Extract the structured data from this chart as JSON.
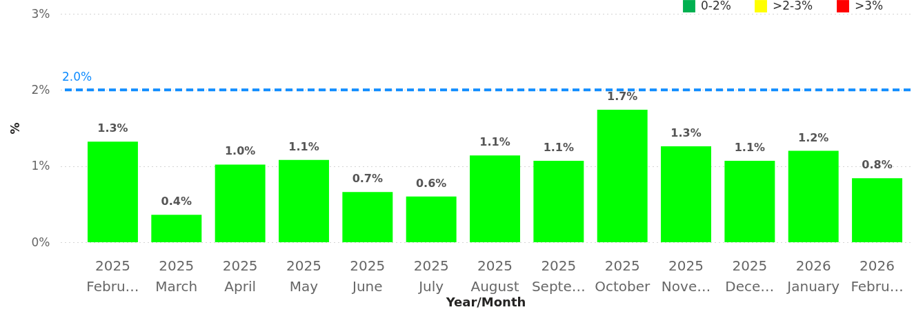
{
  "chart_data": {
    "type": "bar",
    "xlabel": "Year/Month",
    "ylabel": "%",
    "categories": [
      "2025\nFebru…",
      "2025\nMarch",
      "2025\nApril",
      "2025\nMay",
      "2025\nJune",
      "2025\nJuly",
      "2025\nAugust",
      "2025\nSepte…",
      "2025\nOctober",
      "2025\nNove…",
      "2025\nDece…",
      "2026\nJanuary",
      "2026\nFebru…"
    ],
    "series": [
      {
        "color": "#00ff00",
        "values": [
          1.32,
          0.36,
          1.02,
          1.08,
          0.66,
          0.6,
          1.14,
          1.07,
          1.74,
          1.26,
          1.07,
          1.2,
          0.84
        ],
        "value_labels": [
          "1.3%",
          "0.4%",
          "1.0%",
          "1.1%",
          "0.7%",
          "0.6%",
          "1.1%",
          "1.1%",
          "1.7%",
          "1.3%",
          "1.1%",
          "1.2%",
          "0.8%"
        ]
      },
      {
        "name": "0-2%",
        "color": "#00b050",
        "values": [
          null,
          null,
          null,
          null,
          null,
          null,
          null,
          null,
          null,
          null,
          null,
          null,
          null
        ]
      },
      {
        "name": ">2-3%",
        "color": "#ffff00",
        "values": [
          null,
          null,
          null,
          null,
          null,
          null,
          null,
          null,
          null,
          null,
          null,
          null,
          null
        ]
      },
      {
        "name": ">3%",
        "color": "#ff0000",
        "values": [
          null,
          null,
          null,
          null,
          null,
          null,
          null,
          null,
          null,
          null,
          null,
          null,
          null
        ]
      }
    ],
    "ylim": [
      0,
      3
    ],
    "yticks": [
      {
        "value": 0,
        "label": "0%"
      },
      {
        "value": 1,
        "label": "1%"
      },
      {
        "value": 2,
        "label": "2%"
      },
      {
        "value": 3,
        "label": "3%"
      }
    ],
    "grid": "y",
    "legend": "top right",
    "ref_lines": [
      {
        "axis": "y",
        "value": 2,
        "label": "2.0%",
        "color": "#118dff",
        "line_style": "dashed"
      }
    ]
  }
}
